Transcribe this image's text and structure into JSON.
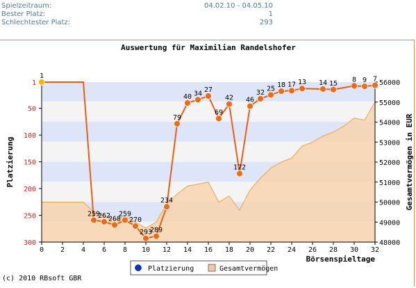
{
  "stats": [
    {
      "label": "Spielzeitraum:",
      "value": "04.02.10 - 04.05.10"
    },
    {
      "label": "Bester Platz:",
      "value": "1"
    },
    {
      "label": "Schlechtester Platz:",
      "value": "293"
    }
  ],
  "copyright": "(c) 2010 RBsoft GBR",
  "colors": {
    "rank_line": "#e85d12",
    "rank_marker": "#f26a18",
    "first_marker": "#ffb400",
    "wealth_fill": "#f8d3ae",
    "wealth_line": "#f0a245",
    "band": "#dfe5f9",
    "axis_text": "#d42020",
    "frame": "#e58a4a",
    "legend_rank": "#0033cc",
    "legend_wealth": "#f2c9a3"
  },
  "chart_data": {
    "type": "line",
    "title": "Auswertung für Maximilian Randelshofer",
    "xlabel": "Börsenspieltage",
    "ylabel": "Platzierung",
    "y2label": "Gesamtvermögen in EUR",
    "xlim": [
      0,
      32
    ],
    "ylim": [
      300,
      1
    ],
    "y2lim": [
      48000,
      56000
    ],
    "x_ticks": [
      "0",
      "2",
      "4",
      "6",
      "8",
      "10",
      "12",
      "14",
      "16",
      "18",
      "20",
      "22",
      "24",
      "26",
      "28",
      "30",
      "32"
    ],
    "y_ticks": [
      "1",
      "50",
      "100",
      "150",
      "200",
      "250",
      "300"
    ],
    "y2_ticks": [
      "48000",
      "49000",
      "50000",
      "51000",
      "52000",
      "53000",
      "54000",
      "55000",
      "56000"
    ],
    "series": [
      {
        "name": "Platzierung",
        "kind": "line",
        "x": [
          0,
          4,
          5,
          6,
          7,
          8,
          9,
          10,
          11,
          12,
          13,
          14,
          15,
          16,
          17,
          18,
          19,
          20,
          21,
          22,
          23,
          24,
          25,
          27,
          28,
          30,
          31,
          32
        ],
        "y": [
          1,
          1,
          259,
          262,
          268,
          259,
          270,
          293,
          289,
          234,
          79,
          40,
          34,
          27,
          69,
          42,
          172,
          46,
          32,
          25,
          18,
          17,
          13,
          14,
          15,
          8,
          9,
          7
        ],
        "labels": [
          "1",
          "",
          "259",
          "262",
          "268",
          "259",
          "270",
          "293",
          "289",
          "234",
          "79",
          "40",
          "34",
          "27",
          "69",
          "42",
          "172",
          "46",
          "32",
          "25",
          "18",
          "17",
          "13",
          "14",
          "15",
          "8",
          "9",
          "7"
        ],
        "markers": [
          true,
          false,
          true,
          true,
          true,
          true,
          true,
          true,
          true,
          true,
          true,
          true,
          true,
          true,
          true,
          true,
          true,
          true,
          true,
          true,
          true,
          true,
          true,
          true,
          true,
          true,
          true,
          true
        ]
      },
      {
        "name": "Gesamtvermögen",
        "kind": "area",
        "x": [
          0,
          4,
          5,
          6,
          7,
          8,
          9,
          10,
          11,
          12,
          13,
          14,
          15,
          16,
          17,
          18,
          19,
          20,
          21,
          22,
          23,
          24,
          25,
          26,
          27,
          28,
          29,
          30,
          31,
          32
        ],
        "y": [
          50000,
          50000,
          49500,
          49300,
          49100,
          49300,
          49000,
          48700,
          49000,
          49900,
          50400,
          50800,
          50900,
          51000,
          50000,
          50300,
          49600,
          50600,
          51200,
          51700,
          52000,
          52200,
          52800,
          53000,
          53300,
          53500,
          53800,
          54200,
          54100,
          55000
        ]
      }
    ],
    "bands": [
      [
        1,
        37
      ],
      [
        75,
        112
      ],
      [
        150,
        187
      ],
      [
        225,
        262
      ]
    ],
    "legend": [
      "Platzierung",
      "Gesamtvermögen"
    ],
    "legend_position": "bottom-center"
  }
}
